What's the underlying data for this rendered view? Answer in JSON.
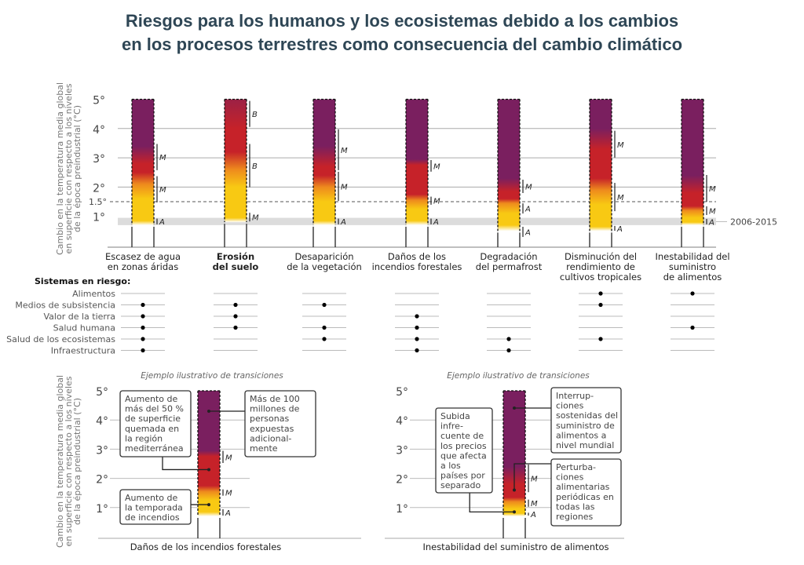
{
  "title": {
    "line1": "Riesgos para los humanos y los ecosistemas debido a los cambios",
    "line2": "en los procesos terrestres como consecuencia del cambio climático"
  },
  "colors": {
    "purple": "#7a1f5f",
    "red": "#c62229",
    "orange": "#ee8a1d",
    "yellow": "#f8c913",
    "white": "#ffffff",
    "band": "#d9d9d9",
    "title": "#2e4655"
  },
  "top_panel": {
    "y_axis_title": [
      "Cambio en la temperatura media global",
      "en superficie con respecto a los niveles",
      "de la época preindustrial (°C)"
    ],
    "y_ticks": [
      {
        "v": 5,
        "label": "5°"
      },
      {
        "v": 4,
        "label": "4°"
      },
      {
        "v": 3,
        "label": "3°"
      },
      {
        "v": 2,
        "label": "2°"
      },
      {
        "v": 1.5,
        "label": "1.5°"
      },
      {
        "v": 1,
        "label": "1°"
      }
    ],
    "reference_band": {
      "range": [
        0.7,
        0.95
      ],
      "label": "2006-2015"
    },
    "reference_dashed": 1.5,
    "bars": [
      {
        "label": [
          "Escasez de agua",
          "en zonas áridas"
        ],
        "bold": false,
        "bottom": 0.7,
        "gradient": [
          [
            0.7,
            "#ffffff"
          ],
          [
            0.85,
            "#f8c913"
          ],
          [
            1.6,
            "#f8c913"
          ],
          [
            2.1,
            "#ee8a1d"
          ],
          [
            2.5,
            "#c62229"
          ],
          [
            2.8,
            "#c62229"
          ],
          [
            3.4,
            "#7a1f5f"
          ],
          [
            5,
            "#7a1f5f"
          ]
        ],
        "confidence": [
          {
            "range": [
              0.7,
              0.95
            ],
            "level": "A"
          },
          {
            "range": [
              1.45,
              2.4
            ],
            "level": "M"
          },
          {
            "range": [
              2.55,
              3.5
            ],
            "level": "M"
          }
        ]
      },
      {
        "label": [
          "Erosión",
          "del suelo"
        ],
        "bold": true,
        "bottom": 0.8,
        "gradient": [
          [
            0.8,
            "#ffffff"
          ],
          [
            0.95,
            "#f8c913"
          ],
          [
            2.0,
            "#f8c913"
          ],
          [
            2.6,
            "#ee8a1d"
          ],
          [
            3.2,
            "#c62229"
          ],
          [
            4.0,
            "#c62229"
          ],
          [
            5,
            "#9c2145"
          ]
        ],
        "confidence": [
          {
            "range": [
              0.8,
              1.15
            ],
            "level": "M"
          },
          {
            "range": [
              1.97,
              3.5
            ],
            "level": "B"
          },
          {
            "range": [
              4.03,
              4.97
            ],
            "level": "B"
          }
        ]
      },
      {
        "label": [
          "Desaparición",
          "de la vegetación"
        ],
        "bold": false,
        "bottom": 0.7,
        "gradient": [
          [
            0.7,
            "#ffffff"
          ],
          [
            0.85,
            "#f8c913"
          ],
          [
            1.5,
            "#f8c913"
          ],
          [
            2.0,
            "#ee8a1d"
          ],
          [
            2.4,
            "#c62229"
          ],
          [
            2.7,
            "#c62229"
          ],
          [
            3.4,
            "#7a1f5f"
          ],
          [
            5,
            "#7a1f5f"
          ]
        ],
        "confidence": [
          {
            "range": [
              0.7,
              0.95
            ],
            "level": "A"
          },
          {
            "range": [
              1.5,
              2.55
            ],
            "level": "M"
          },
          {
            "range": [
              2.55,
              4.0
            ],
            "level": "M"
          }
        ]
      },
      {
        "label": [
          "Daños de los",
          "incendios forestales"
        ],
        "bold": false,
        "bottom": 0.7,
        "gradient": [
          [
            0.7,
            "#ffffff"
          ],
          [
            0.85,
            "#f8c913"
          ],
          [
            1.25,
            "#f8c913"
          ],
          [
            1.55,
            "#ee8a1d"
          ],
          [
            1.75,
            "#c62229"
          ],
          [
            2.75,
            "#c62229"
          ],
          [
            2.95,
            "#7a1f5f"
          ],
          [
            5,
            "#7a1f5f"
          ]
        ],
        "confidence": [
          {
            "range": [
              0.7,
              0.95
            ],
            "level": "A"
          },
          {
            "range": [
              1.37,
              1.7
            ],
            "level": "M"
          },
          {
            "range": [
              2.5,
              2.95
            ],
            "level": "M"
          }
        ]
      },
      {
        "label": [
          "Degradación",
          "del permafrost"
        ],
        "bold": false,
        "bottom": 0.5,
        "gradient": [
          [
            0.45,
            "#ffffff"
          ],
          [
            0.7,
            "#f8c913"
          ],
          [
            1.1,
            "#f8c913"
          ],
          [
            1.45,
            "#ee8a1d"
          ],
          [
            1.6,
            "#c62229"
          ],
          [
            1.85,
            "#c62229"
          ],
          [
            2.3,
            "#7a1f5f"
          ],
          [
            5,
            "#7a1f5f"
          ]
        ],
        "confidence": [
          {
            "range": [
              0.27,
              0.67
            ],
            "level": "A"
          },
          {
            "range": [
              1.07,
              1.47
            ],
            "level": "A"
          },
          {
            "range": [
              1.77,
              2.28
            ],
            "level": "M"
          }
        ]
      },
      {
        "label": [
          "Disminución del",
          "rendimiento de",
          "cultivos tropicales"
        ],
        "bold": false,
        "bottom": 0.5,
        "gradient": [
          [
            0.45,
            "#ffffff"
          ],
          [
            0.65,
            "#f8c913"
          ],
          [
            1.4,
            "#f8c913"
          ],
          [
            1.9,
            "#ee8a1d"
          ],
          [
            2.3,
            "#c62229"
          ],
          [
            3.3,
            "#c62229"
          ],
          [
            4.0,
            "#7a1f5f"
          ],
          [
            5,
            "#7a1f5f"
          ]
        ],
        "confidence": [
          {
            "range": [
              0.48,
              0.7
            ],
            "level": "A"
          },
          {
            "range": [
              1.15,
              2.17
            ],
            "level": "M"
          },
          {
            "range": [
              2.98,
              3.95
            ],
            "level": "M"
          }
        ]
      },
      {
        "label": [
          "Inestabilidad del",
          "suministro",
          "de alimentos"
        ],
        "bold": false,
        "bottom": 0.7,
        "gradient": [
          [
            0.7,
            "#ffffff"
          ],
          [
            0.8,
            "#f8c913"
          ],
          [
            0.95,
            "#f8c913"
          ],
          [
            1.2,
            "#ee8a1d"
          ],
          [
            1.35,
            "#c62229"
          ],
          [
            1.8,
            "#c62229"
          ],
          [
            2.4,
            "#7a1f5f"
          ],
          [
            5,
            "#7a1f5f"
          ]
        ],
        "confidence": [
          {
            "range": [
              0.7,
              0.94
            ],
            "level": "A"
          },
          {
            "range": [
              1.02,
              1.37
            ],
            "level": "M"
          },
          {
            "range": [
              1.47,
              2.44
            ],
            "level": "M"
          }
        ]
      }
    ]
  },
  "systems": {
    "header": "Sistemas en riesgo:",
    "rows": [
      "Alimentos",
      "Medios de subsistencia",
      "Valor de la tierra",
      "Salud humana",
      "Salud de los ecosistemas",
      "Infraestructura"
    ],
    "matrix": [
      [
        false,
        true,
        true,
        true,
        true,
        true
      ],
      [
        false,
        true,
        true,
        true,
        false,
        false
      ],
      [
        false,
        true,
        false,
        true,
        true,
        false
      ],
      [
        false,
        false,
        true,
        true,
        true,
        true
      ],
      [
        false,
        false,
        false,
        false,
        true,
        true
      ],
      [
        true,
        true,
        false,
        false,
        true,
        false
      ],
      [
        true,
        false,
        false,
        true,
        false,
        false
      ]
    ]
  },
  "bottom_panels": [
    {
      "subtitle": "Ejemplo ilustrativo de transiciones",
      "label": "Daños de los incendios forestales",
      "y_ticks": [
        {
          "v": 5,
          "label": "5°"
        },
        {
          "v": 4,
          "label": "4°"
        },
        {
          "v": 3,
          "label": "3°"
        },
        {
          "v": 2,
          "label": "2°"
        },
        {
          "v": 1,
          "label": "1°"
        }
      ],
      "gradient": [
        [
          0.7,
          "#ffffff"
        ],
        [
          0.85,
          "#f8c913"
        ],
        [
          1.25,
          "#f8c913"
        ],
        [
          1.55,
          "#ee8a1d"
        ],
        [
          1.75,
          "#c62229"
        ],
        [
          2.75,
          "#c62229"
        ],
        [
          2.95,
          "#7a1f5f"
        ],
        [
          5,
          "#7a1f5f"
        ]
      ],
      "confidence": [
        {
          "range": [
            0.7,
            0.97
          ],
          "level": "A"
        },
        {
          "range": [
            1.38,
            1.65
          ],
          "level": "M"
        },
        {
          "range": [
            2.5,
            2.97
          ],
          "level": "M"
        }
      ],
      "callouts": [
        {
          "lines": [
            "Aumento de",
            "más del 50 %",
            "de superficie",
            "quemada en",
            "la región",
            "mediterránea"
          ],
          "temp": 2.3
        },
        {
          "lines": [
            "Más de 100",
            "millones de",
            "personas",
            "expuestas",
            "adicional-",
            "mente"
          ],
          "temp": 4.3
        },
        {
          "lines": [
            "Aumento de",
            "la temporada",
            "de incendios"
          ],
          "temp": 1.1
        }
      ]
    },
    {
      "subtitle": "Ejemplo ilustrativo de transiciones",
      "label": "Inestabilidad del suministro de alimentos",
      "y_ticks": [
        {
          "v": 5,
          "label": "5°"
        },
        {
          "v": 4,
          "label": "4°"
        },
        {
          "v": 3,
          "label": "3°"
        },
        {
          "v": 2,
          "label": "2°"
        },
        {
          "v": 1,
          "label": "1°"
        }
      ],
      "gradient": [
        [
          0.7,
          "#ffffff"
        ],
        [
          0.8,
          "#f8c913"
        ],
        [
          0.95,
          "#f8c913"
        ],
        [
          1.2,
          "#ee8a1d"
        ],
        [
          1.35,
          "#c62229"
        ],
        [
          1.8,
          "#c62229"
        ],
        [
          2.4,
          "#7a1f5f"
        ],
        [
          5,
          "#7a1f5f"
        ]
      ],
      "confidence": [
        {
          "range": [
            0.7,
            0.85
          ],
          "level": "A"
        },
        {
          "range": [
            1.0,
            1.3
          ],
          "level": "M"
        },
        {
          "range": [
            1.5,
            2.5
          ],
          "level": "M"
        }
      ],
      "callouts": [
        {
          "lines": [
            "Subida",
            "infre-",
            "cuente de",
            "los precios",
            "que afecta",
            "a los",
            "países por",
            "separado"
          ],
          "temp": 0.85
        },
        {
          "lines": [
            "Interrup-",
            "ciones",
            "sostenidas del",
            "suministro de",
            "alimentos a",
            "nivel mundial"
          ],
          "temp": 4.3
        },
        {
          "lines": [
            "Perturba-",
            "ciones",
            "alimentarias",
            "periódicas en",
            "todas las",
            "regiones"
          ],
          "temp": 1.6
        }
      ]
    }
  ]
}
